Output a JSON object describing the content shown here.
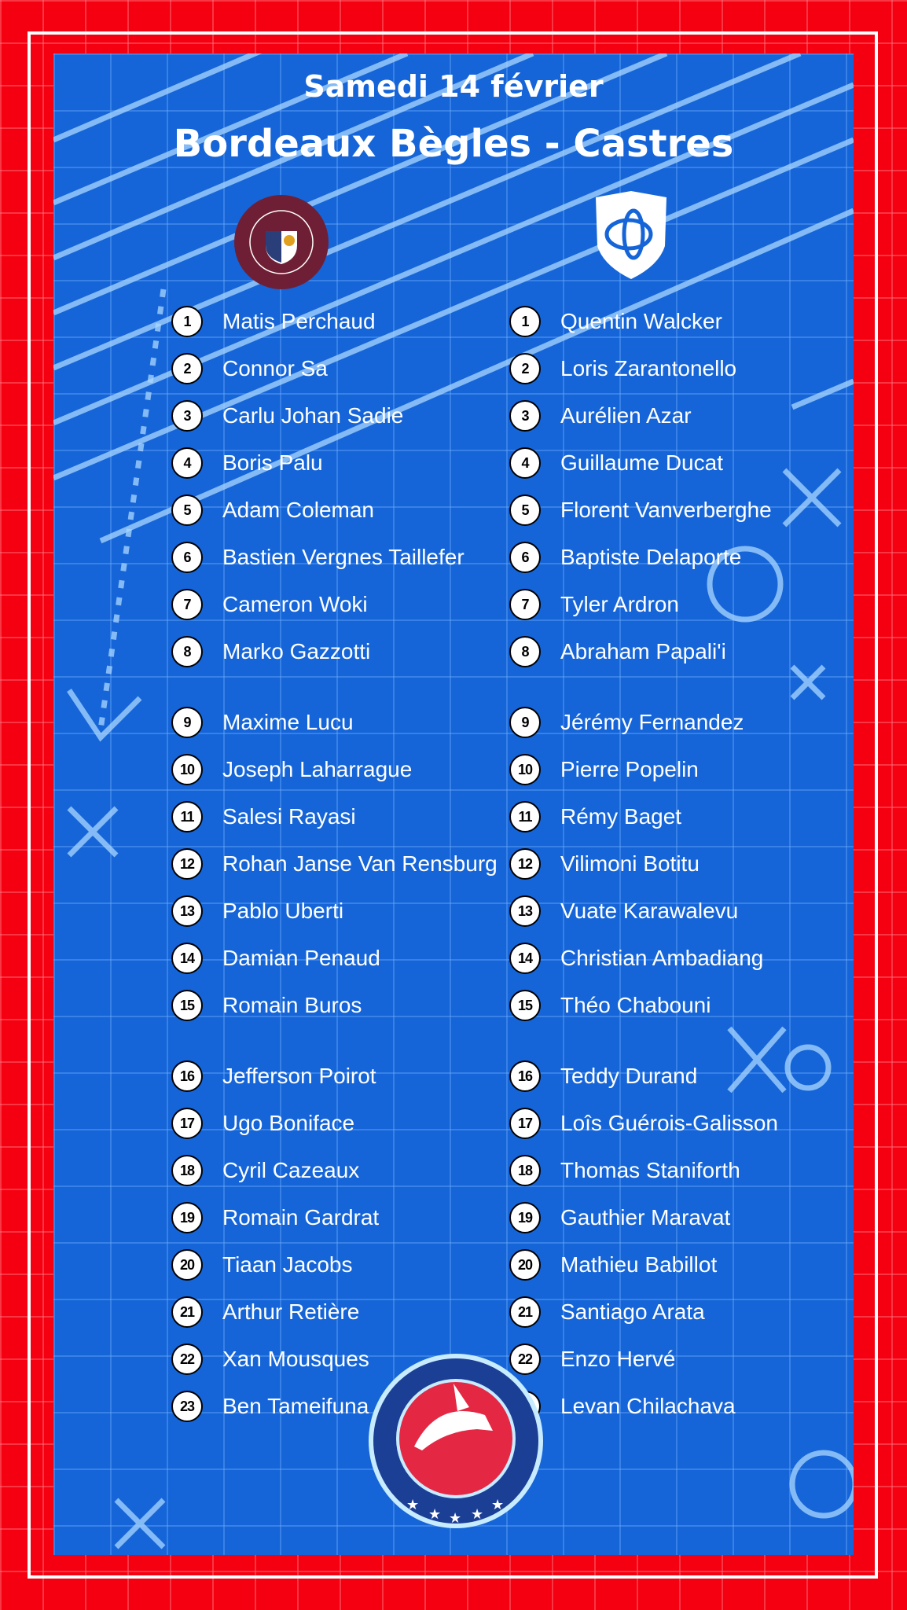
{
  "header": {
    "date": "Samedi 14 février",
    "match": "Bordeaux Bègles - Castres"
  },
  "colors": {
    "red": "#f40010",
    "blue": "#1565d8",
    "ubb": "#6e1f35"
  },
  "logos": {
    "home": "UNION BORDEAUX BEGLES RUGBY",
    "away": "CASTRES OLYMPIQUE",
    "site": "VIBREZ-RUGBY.COM"
  },
  "home": [
    "Matis Perchaud",
    "Connor Sa",
    "Carlu Johan Sadie",
    "Boris Palu",
    "Adam Coleman",
    "Bastien Vergnes Taillefer",
    "Cameron Woki",
    "Marko Gazzotti",
    "Maxime Lucu",
    "Joseph Laharrague",
    "Salesi Rayasi",
    "Rohan Janse Van Rensburg",
    "Pablo Uberti",
    "Damian Penaud",
    "Romain Buros",
    "Jefferson Poirot",
    "Ugo Boniface",
    "Cyril Cazeaux",
    "Romain Gardrat",
    "Tiaan Jacobs",
    "Arthur Retière",
    "Xan Mousques",
    "Ben Tameifuna"
  ],
  "away": [
    "Quentin Walcker",
    "Loris Zarantonello",
    "Aurélien Azar",
    "Guillaume Ducat",
    "Florent Vanverberghe",
    "Baptiste Delaporte",
    "Tyler Ardron",
    "Abraham Papali'i",
    "Jérémy Fernandez",
    "Pierre Popelin",
    "Rémy Baget",
    "Vilimoni Botitu",
    "Vuate Karawalevu",
    "Christian Ambadiang",
    "Théo Chabouni",
    "Teddy Durand",
    "Loîs Guérois-Galisson",
    "Thomas Staniforth",
    "Gauthier Maravat",
    "Mathieu Babillot",
    "Santiago Arata",
    "Enzo Hervé",
    "Levan Chilachava"
  ]
}
